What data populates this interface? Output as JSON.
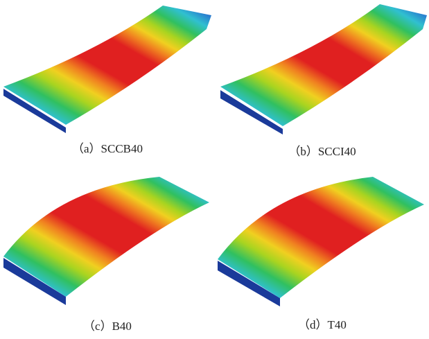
{
  "figure": {
    "panels": [
      {
        "caption": "（a）SCCB40"
      },
      {
        "caption": "（b）SCCI40"
      },
      {
        "caption": "（c）B40"
      },
      {
        "caption": "（d）T40"
      }
    ]
  }
}
